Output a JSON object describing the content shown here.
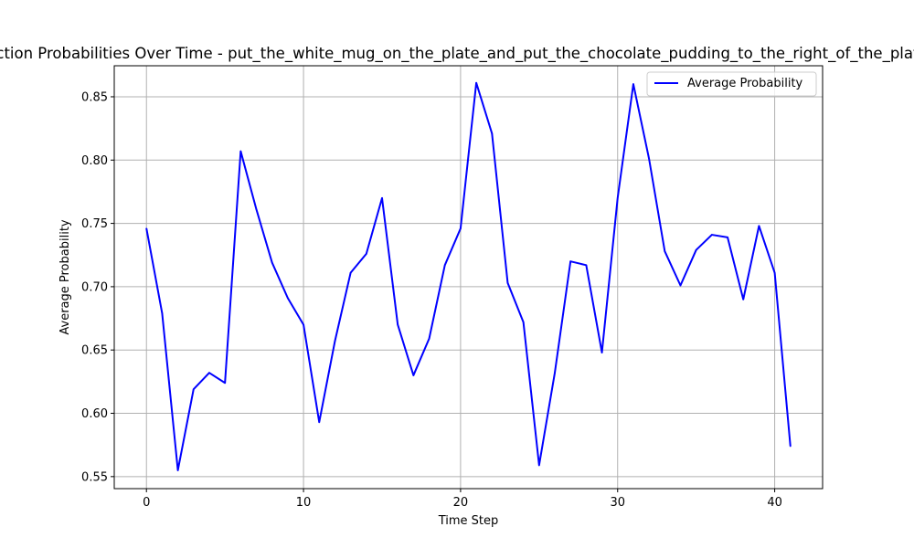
{
  "chart_data": {
    "type": "line",
    "title": "Action Probabilities Over Time - put_the_white_mug_on_the_plate_and_put_the_chocolate_pudding_to_the_right_of_the_plate",
    "xlabel": "Time Step",
    "ylabel": "Average Probability",
    "xlim": [
      -2.05,
      43.05
    ],
    "ylim": [
      0.5405,
      0.8745
    ],
    "xticks": [
      0,
      10,
      20,
      30,
      40
    ],
    "yticks": [
      0.55,
      0.6,
      0.65,
      0.7,
      0.75,
      0.8,
      0.85
    ],
    "xtick_labels": [
      "0",
      "10",
      "20",
      "30",
      "40"
    ],
    "ytick_labels": [
      "0.55",
      "0.60",
      "0.65",
      "0.70",
      "0.75",
      "0.80",
      "0.85"
    ],
    "grid": true,
    "legend_position": "top-right",
    "series": [
      {
        "name": "Average Probability",
        "color": "#0000ff",
        "x": [
          0,
          1,
          2,
          3,
          4,
          5,
          6,
          7,
          8,
          9,
          10,
          11,
          12,
          13,
          14,
          15,
          16,
          17,
          18,
          19,
          20,
          21,
          22,
          23,
          24,
          25,
          26,
          27,
          28,
          29,
          30,
          31,
          32,
          33,
          34,
          35,
          36,
          37,
          38,
          39,
          40,
          41
        ],
        "y": [
          0.746,
          0.679,
          0.555,
          0.619,
          0.632,
          0.624,
          0.807,
          0.761,
          0.719,
          0.691,
          0.67,
          0.593,
          0.657,
          0.711,
          0.726,
          0.77,
          0.67,
          0.63,
          0.659,
          0.717,
          0.746,
          0.861,
          0.821,
          0.703,
          0.672,
          0.559,
          0.632,
          0.72,
          0.717,
          0.648,
          0.77,
          0.86,
          0.801,
          0.728,
          0.701,
          0.729,
          0.741,
          0.739,
          0.69,
          0.748,
          0.711,
          0.574
        ]
      }
    ]
  }
}
